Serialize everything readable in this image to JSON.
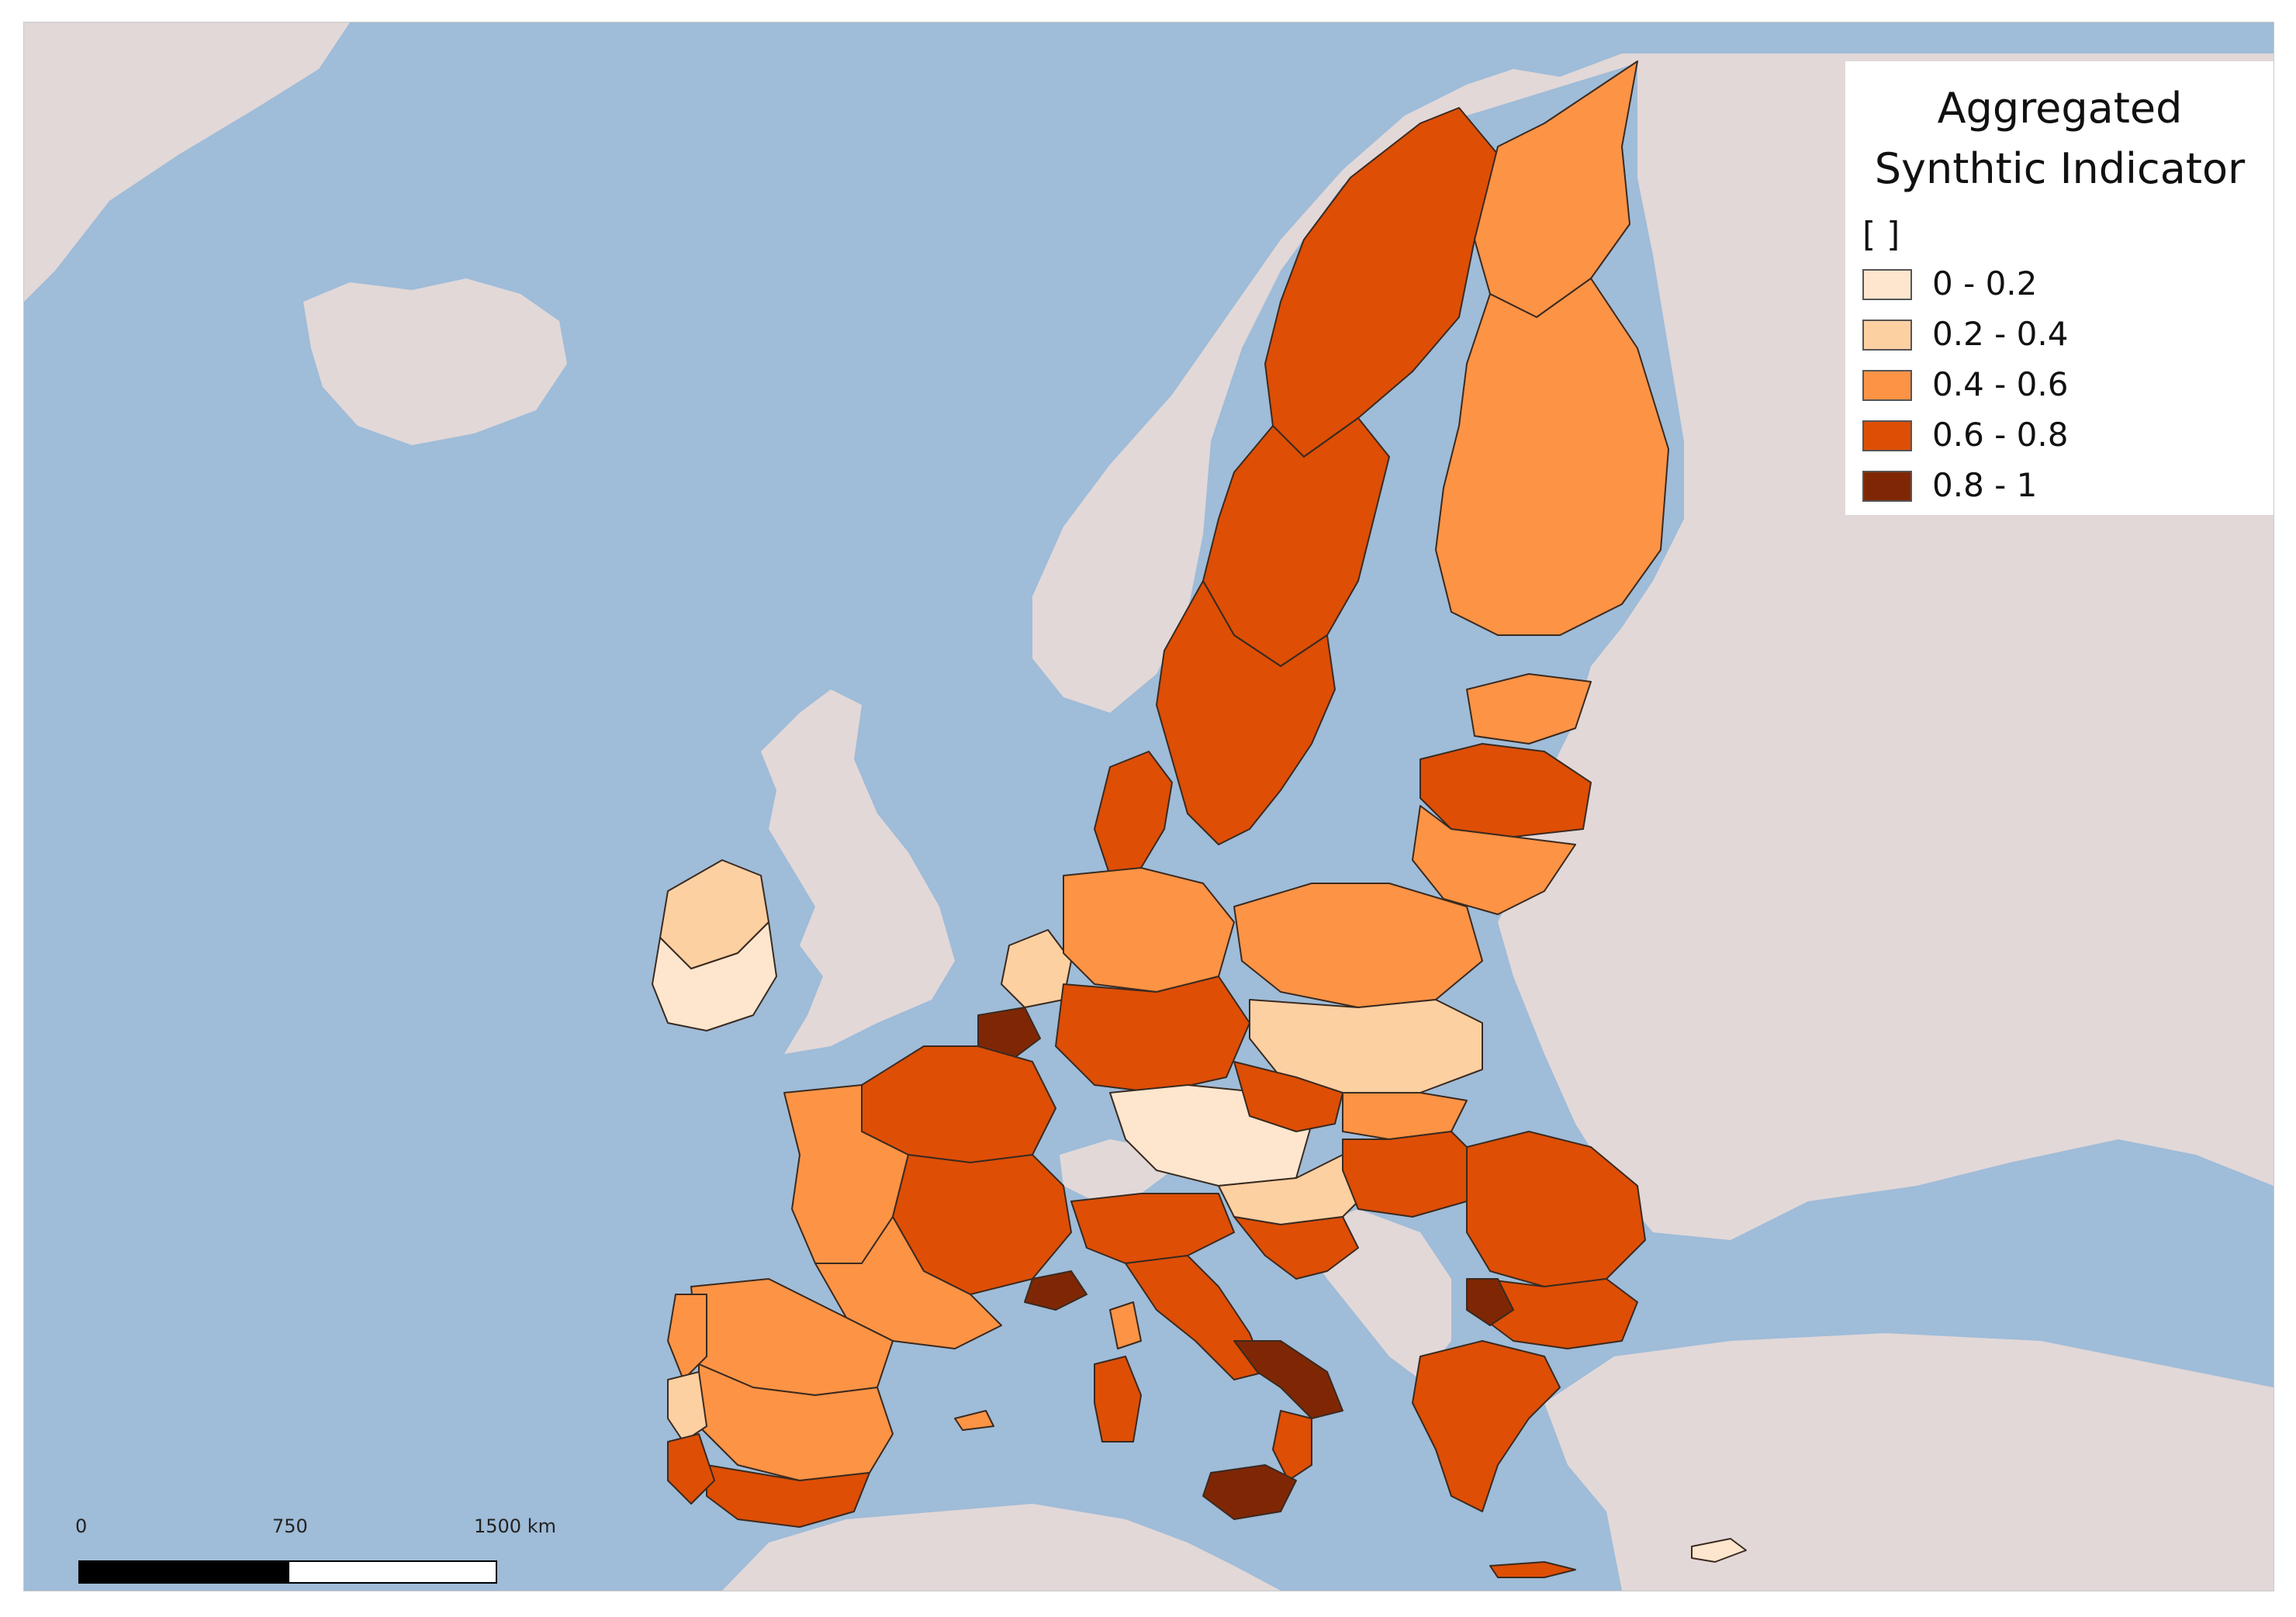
{
  "legend": {
    "title": "Aggregated Synthtic Indicator",
    "unit": "[ ]",
    "classes": [
      {
        "label": "0 - 0.2",
        "color": "#fee6ce"
      },
      {
        "label": "0.2 - 0.4",
        "color": "#fdd0a2"
      },
      {
        "label": "0.4 - 0.6",
        "color": "#fd9345"
      },
      {
        "label": "0.6 - 0.8",
        "color": "#de4e05"
      },
      {
        "label": "0.8 - 1",
        "color": "#7f2704"
      }
    ]
  },
  "scalebar": {
    "ticks": [
      "0",
      "750",
      "1500 km"
    ]
  },
  "colors": {
    "sea": "#9fbcd8",
    "land": "#e2d8d8",
    "border": "#3a2a20"
  }
}
